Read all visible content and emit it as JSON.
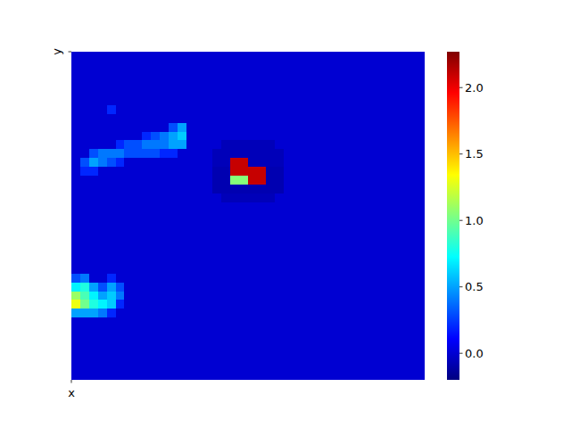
{
  "chart_data": {
    "type": "heatmap",
    "x_label": "x",
    "y_label": "y",
    "colorbar": {
      "range": [
        -0.2,
        2.27
      ],
      "ticks": [
        {
          "value": 0,
          "label": "0.0"
        },
        {
          "value": 0.5,
          "label": "0.5"
        },
        {
          "value": 1,
          "label": "1.0"
        },
        {
          "value": 1.5,
          "label": "1.5"
        },
        {
          "value": 2,
          "label": "2.0"
        }
      ]
    },
    "cells": [
      [
        0,
        0,
        0,
        0,
        0,
        0,
        0,
        0,
        0,
        0,
        0,
        0,
        0,
        0,
        0,
        0,
        0,
        0,
        0,
        0,
        0,
        0,
        0,
        0,
        0,
        0,
        0,
        0,
        0,
        0,
        0,
        0,
        0,
        0,
        0,
        0,
        0,
        0,
        0,
        0
      ],
      [
        0,
        0,
        0,
        0,
        0,
        0,
        0,
        0,
        0,
        0,
        0,
        0,
        0,
        0,
        0,
        0,
        0,
        0,
        0,
        0,
        0,
        0,
        0,
        0,
        0,
        0,
        0,
        0,
        0,
        0,
        0,
        0,
        0,
        0,
        0,
        0,
        0,
        0,
        0,
        0
      ],
      [
        0,
        0,
        0,
        0,
        0,
        0,
        0,
        0,
        0,
        0,
        0,
        0,
        0,
        0,
        0,
        0,
        0,
        0,
        0,
        0,
        0,
        0,
        0,
        0,
        0,
        0,
        0,
        0,
        0,
        0,
        0,
        0,
        0,
        0,
        0,
        0,
        0,
        0,
        0,
        0
      ],
      [
        0,
        0,
        0,
        0,
        0,
        0,
        0,
        0,
        0,
        0,
        0,
        0,
        0,
        0,
        0,
        0,
        0,
        0,
        0,
        0,
        0,
        0,
        0,
        0,
        0,
        0,
        0,
        0,
        0,
        0,
        0,
        0,
        0,
        0,
        0,
        0,
        0,
        0,
        0,
        0
      ],
      [
        0,
        0,
        0,
        0,
        0,
        0,
        0,
        0,
        0,
        0,
        0,
        0,
        0,
        0,
        0,
        0,
        0,
        0,
        0,
        0,
        0,
        0,
        0,
        0,
        0,
        0,
        0,
        0,
        0,
        0,
        0,
        0,
        0,
        0,
        0,
        0,
        0,
        0,
        0,
        0
      ],
      [
        0,
        0,
        0,
        0,
        0,
        0,
        0,
        0,
        0,
        0,
        0,
        0,
        0,
        0,
        0,
        0,
        0,
        0,
        0,
        0,
        0,
        0,
        0,
        0,
        0,
        0,
        0,
        0,
        0,
        0,
        0,
        0,
        0,
        0,
        0,
        0,
        0,
        0,
        0,
        0
      ],
      [
        0,
        0,
        0,
        0,
        0.2,
        0,
        0,
        0,
        0,
        0,
        0,
        0,
        0,
        0,
        0,
        0,
        0,
        0,
        0,
        0,
        0,
        0,
        0,
        0,
        0,
        0,
        0,
        0,
        0,
        0,
        0,
        0,
        0,
        0,
        0,
        0,
        0,
        0,
        0,
        0
      ],
      [
        0,
        0,
        0,
        0,
        0,
        0,
        0,
        0,
        0,
        0,
        0,
        0,
        0,
        0,
        0,
        0,
        0,
        0,
        0,
        0,
        0,
        0,
        0,
        0,
        0,
        0,
        0,
        0,
        0,
        0,
        0,
        0,
        0,
        0,
        0,
        0,
        0,
        0,
        0,
        0
      ],
      [
        0,
        0,
        0,
        0,
        0,
        0,
        0,
        0,
        0,
        0,
        0,
        0.3,
        0.5,
        0,
        0,
        0,
        0,
        0,
        0,
        0,
        0,
        0,
        0,
        0,
        0,
        0,
        0,
        0,
        0,
        0,
        0,
        0,
        0,
        0,
        0,
        0,
        0,
        0,
        0,
        0
      ],
      [
        0,
        0,
        0,
        0,
        0,
        0,
        0,
        0,
        0.2,
        0.3,
        0.4,
        0.5,
        0.6,
        0,
        0,
        0,
        0,
        0,
        0,
        0,
        0,
        0,
        0,
        0,
        0,
        0,
        0,
        0,
        0,
        0,
        0,
        0,
        0,
        0,
        0,
        0,
        0,
        0,
        0,
        0
      ],
      [
        0,
        0,
        0,
        0,
        0,
        0.2,
        0.3,
        0.3,
        0.4,
        0.4,
        0.4,
        0.5,
        0.5,
        0,
        0,
        0,
        0,
        -0.06,
        -0.06,
        -0.06,
        -0.06,
        -0.06,
        -0.06,
        0,
        0,
        0,
        0,
        0,
        0,
        0,
        0,
        0,
        0,
        0,
        0,
        0,
        0,
        0,
        0,
        0
      ],
      [
        0,
        0,
        0.3,
        0.4,
        0.4,
        0.4,
        0.3,
        0.3,
        0.3,
        0.3,
        0.2,
        0.2,
        0,
        0,
        0,
        0,
        -0.06,
        -0.06,
        -0.06,
        -0.06,
        -0.06,
        -0.06,
        -0.06,
        -0.06,
        0,
        0,
        0,
        0,
        0,
        0,
        0,
        0,
        0,
        0,
        0,
        0,
        0,
        0,
        0,
        0
      ],
      [
        0,
        0.3,
        0.5,
        0.4,
        0.3,
        0.2,
        0,
        0,
        0,
        0,
        0,
        0,
        0,
        0,
        0,
        0,
        -0.06,
        -0.06,
        2.1,
        2.1,
        -0.06,
        -0.06,
        -0.06,
        -0.06,
        0,
        0,
        0,
        0,
        0,
        0,
        0,
        0,
        0,
        0,
        0,
        0,
        0,
        0,
        0,
        0
      ],
      [
        0,
        0.2,
        0.2,
        0,
        0,
        0,
        0,
        0,
        0,
        0,
        0,
        0,
        0,
        0,
        0,
        0,
        -0.08,
        -0.08,
        2.1,
        2.1,
        2.1,
        2.1,
        -0.08,
        -0.08,
        0,
        0,
        0,
        0,
        0,
        0,
        0,
        0,
        0,
        0,
        0,
        0,
        0,
        0,
        0,
        0
      ],
      [
        0,
        0,
        0,
        0,
        0,
        0,
        0,
        0,
        0,
        0,
        0,
        0,
        0,
        0,
        0,
        0,
        -0.08,
        -0.08,
        1.05,
        1.05,
        2.1,
        2.1,
        -0.08,
        -0.08,
        0,
        0,
        0,
        0,
        0,
        0,
        0,
        0,
        0,
        0,
        0,
        0,
        0,
        0,
        0,
        0
      ],
      [
        0,
        0,
        0,
        0,
        0,
        0,
        0,
        0,
        0,
        0,
        0,
        0,
        0,
        0,
        0,
        0,
        -0.08,
        -0.08,
        -0.08,
        -0.08,
        -0.08,
        -0.08,
        -0.08,
        -0.08,
        0,
        0,
        0,
        0,
        0,
        0,
        0,
        0,
        0,
        0,
        0,
        0,
        0,
        0,
        0,
        0
      ],
      [
        0,
        0,
        0,
        0,
        0,
        0,
        0,
        0,
        0,
        0,
        0,
        0,
        0,
        0,
        0,
        0,
        0,
        -0.06,
        -0.06,
        -0.06,
        -0.06,
        -0.06,
        -0.06,
        0,
        0,
        0,
        0,
        0,
        0,
        0,
        0,
        0,
        0,
        0,
        0,
        0,
        0,
        0,
        0,
        0
      ],
      [
        0,
        0,
        0,
        0,
        0,
        0,
        0,
        0,
        0,
        0,
        0,
        0,
        0,
        0,
        0,
        0,
        0,
        0,
        0,
        0,
        0,
        0,
        0,
        0,
        0,
        0,
        0,
        0,
        0,
        0,
        0,
        0,
        0,
        0,
        0,
        0,
        0,
        0,
        0,
        0
      ],
      [
        0,
        0,
        0,
        0,
        0,
        0,
        0,
        0,
        0,
        0,
        0,
        0,
        0,
        0,
        0,
        0,
        0,
        0,
        0,
        0,
        0,
        0,
        0,
        0,
        0,
        0,
        0,
        0,
        0,
        0,
        0,
        0,
        0,
        0,
        0,
        0,
        0,
        0,
        0,
        0
      ],
      [
        0,
        0,
        0,
        0,
        0,
        0,
        0,
        0,
        0,
        0,
        0,
        0,
        0,
        0,
        0,
        0,
        0,
        0,
        0,
        0,
        0,
        0,
        0,
        0,
        0,
        0,
        0,
        0,
        0,
        0,
        0,
        0,
        0,
        0,
        0,
        0,
        0,
        0,
        0,
        0
      ],
      [
        0,
        0,
        0,
        0,
        0,
        0,
        0,
        0,
        0,
        0,
        0,
        0,
        0,
        0,
        0,
        0,
        0,
        0,
        0,
        0,
        0,
        0,
        0,
        0,
        0,
        0,
        0,
        0,
        0,
        0,
        0,
        0,
        0,
        0,
        0,
        0,
        0,
        0,
        0,
        0
      ],
      [
        0,
        0,
        0,
        0,
        0,
        0,
        0,
        0,
        0,
        0,
        0,
        0,
        0,
        0,
        0,
        0,
        0,
        0,
        0,
        0,
        0,
        0,
        0,
        0,
        0,
        0,
        0,
        0,
        0,
        0,
        0,
        0,
        0,
        0,
        0,
        0,
        0,
        0,
        0,
        0
      ],
      [
        0,
        0,
        0,
        0,
        0,
        0,
        0,
        0,
        0,
        0,
        0,
        0,
        0,
        0,
        0,
        0,
        0,
        0,
        0,
        0,
        0,
        0,
        0,
        0,
        0,
        0,
        0,
        0,
        0,
        0,
        0,
        0,
        0,
        0,
        0,
        0,
        0,
        0,
        0,
        0
      ],
      [
        0,
        0,
        0,
        0,
        0,
        0,
        0,
        0,
        0,
        0,
        0,
        0,
        0,
        0,
        0,
        0,
        0,
        0,
        0,
        0,
        0,
        0,
        0,
        0,
        0,
        0,
        0,
        0,
        0,
        0,
        0,
        0,
        0,
        0,
        0,
        0,
        0,
        0,
        0,
        0
      ],
      [
        0,
        0,
        0,
        0,
        0,
        0,
        0,
        0,
        0,
        0,
        0,
        0,
        0,
        0,
        0,
        0,
        0,
        0,
        0,
        0,
        0,
        0,
        0,
        0,
        0,
        0,
        0,
        0,
        0,
        0,
        0,
        0,
        0,
        0,
        0,
        0,
        0,
        0,
        0,
        0
      ],
      [
        0.3,
        0.4,
        0,
        0,
        0.2,
        0,
        0,
        0,
        0,
        0,
        0,
        0,
        0,
        0,
        0,
        0,
        0,
        0,
        0,
        0,
        0,
        0,
        0,
        0,
        0,
        0,
        0,
        0,
        0,
        0,
        0,
        0,
        0,
        0,
        0,
        0,
        0,
        0,
        0,
        0
      ],
      [
        0.7,
        0.8,
        0.5,
        0.3,
        0.5,
        0.3,
        0,
        0,
        0,
        0,
        0,
        0,
        0,
        0,
        0,
        0,
        0,
        0,
        0,
        0,
        0,
        0,
        0,
        0,
        0,
        0,
        0,
        0,
        0,
        0,
        0,
        0,
        0,
        0,
        0,
        0,
        0,
        0,
        0,
        0
      ],
      [
        1.1,
        0.9,
        0.7,
        0.5,
        0.6,
        0.4,
        0,
        0,
        0,
        0,
        0,
        0,
        0,
        0,
        0,
        0,
        0,
        0,
        0,
        0,
        0,
        0,
        0,
        0,
        0,
        0,
        0,
        0,
        0,
        0,
        0,
        0,
        0,
        0,
        0,
        0,
        0,
        0,
        0,
        0
      ],
      [
        1.3,
        1.0,
        0.8,
        0.7,
        0.6,
        0.2,
        0,
        0,
        0,
        0,
        0,
        0,
        0,
        0,
        0,
        0,
        0,
        0,
        0,
        0,
        0,
        0,
        0,
        0,
        0,
        0,
        0,
        0,
        0,
        0,
        0,
        0,
        0,
        0,
        0,
        0,
        0,
        0,
        0,
        0
      ],
      [
        0.5,
        0.5,
        0.5,
        0.4,
        0.2,
        0,
        0,
        0,
        0,
        0,
        0,
        0,
        0,
        0,
        0,
        0,
        0,
        0,
        0,
        0,
        0,
        0,
        0,
        0,
        0,
        0,
        0,
        0,
        0,
        0,
        0,
        0,
        0,
        0,
        0,
        0,
        0,
        0,
        0,
        0
      ],
      [
        0,
        0,
        0,
        0,
        0,
        0,
        0,
        0,
        0,
        0,
        0,
        0,
        0,
        0,
        0,
        0,
        0,
        0,
        0,
        0,
        0,
        0,
        0,
        0,
        0,
        0,
        0,
        0,
        0,
        0,
        0,
        0,
        0,
        0,
        0,
        0,
        0,
        0,
        0,
        0
      ],
      [
        0,
        0,
        0,
        0,
        0,
        0,
        0,
        0,
        0,
        0,
        0,
        0,
        0,
        0,
        0,
        0,
        0,
        0,
        0,
        0,
        0,
        0,
        0,
        0,
        0,
        0,
        0,
        0,
        0,
        0,
        0,
        0,
        0,
        0,
        0,
        0,
        0,
        0,
        0,
        0
      ],
      [
        0,
        0,
        0,
        0,
        0,
        0,
        0,
        0,
        0,
        0,
        0,
        0,
        0,
        0,
        0,
        0,
        0,
        0,
        0,
        0,
        0,
        0,
        0,
        0,
        0,
        0,
        0,
        0,
        0,
        0,
        0,
        0,
        0,
        0,
        0,
        0,
        0,
        0,
        0,
        0
      ],
      [
        0,
        0,
        0,
        0,
        0,
        0,
        0,
        0,
        0,
        0,
        0,
        0,
        0,
        0,
        0,
        0,
        0,
        0,
        0,
        0,
        0,
        0,
        0,
        0,
        0,
        0,
        0,
        0,
        0,
        0,
        0,
        0,
        0,
        0,
        0,
        0,
        0,
        0,
        0,
        0
      ],
      [
        0,
        0,
        0,
        0,
        0,
        0,
        0,
        0,
        0,
        0,
        0,
        0,
        0,
        0,
        0,
        0,
        0,
        0,
        0,
        0,
        0,
        0,
        0,
        0,
        0,
        0,
        0,
        0,
        0,
        0,
        0,
        0,
        0,
        0,
        0,
        0,
        0,
        0,
        0,
        0
      ],
      [
        0,
        0,
        0,
        0,
        0,
        0,
        0,
        0,
        0,
        0,
        0,
        0,
        0,
        0,
        0,
        0,
        0,
        0,
        0,
        0,
        0,
        0,
        0,
        0,
        0,
        0,
        0,
        0,
        0,
        0,
        0,
        0,
        0,
        0,
        0,
        0,
        0,
        0,
        0,
        0
      ],
      [
        0,
        0,
        0,
        0,
        0,
        0,
        0,
        0,
        0,
        0,
        0,
        0,
        0,
        0,
        0,
        0,
        0,
        0,
        0,
        0,
        0,
        0,
        0,
        0,
        0,
        0,
        0,
        0,
        0,
        0,
        0,
        0,
        0,
        0,
        0,
        0,
        0,
        0,
        0,
        0
      ]
    ]
  }
}
